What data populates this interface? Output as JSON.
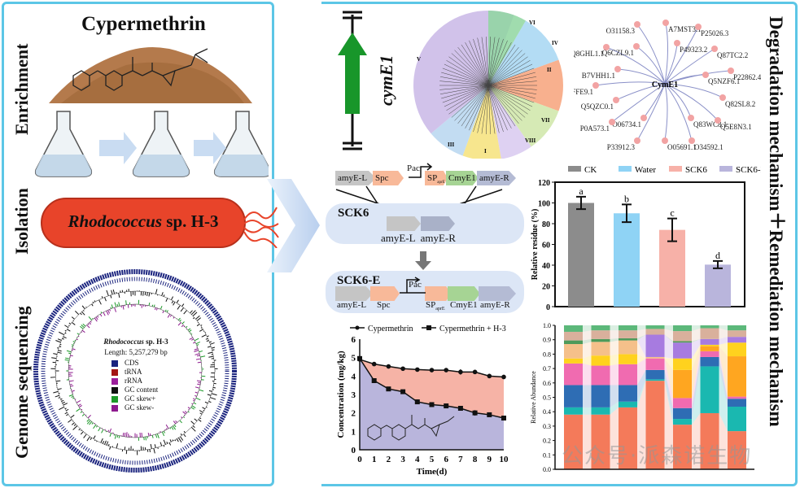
{
  "left": {
    "section_labels": [
      "Enrichment",
      "Isolation",
      "Genome sequencing"
    ],
    "compound_title": "Cypermethrin",
    "strain_name_italic": "Rhodococcus",
    "strain_name_rest": " sp. H-3",
    "genome": {
      "title_italic": "Rhodococcus",
      "title_rest": " sp. H-3",
      "length": "Length: 5,257,279 bp",
      "legend": [
        {
          "label": "CDS",
          "color": "#1a237e"
        },
        {
          "label": "tRNA",
          "color": "#a31515"
        },
        {
          "label": "rRNA",
          "color": "#9c1f9c"
        },
        {
          "label": "GC content",
          "color": "#111111"
        },
        {
          "label": "GC skew+",
          "color": "#1e9a2a"
        },
        {
          "label": "GC skew-",
          "color": "#8e1a8e"
        }
      ]
    }
  },
  "middle": {
    "gene_label": "cymE1",
    "tree_clades": [
      "I",
      "II",
      "III",
      "IV",
      "V",
      "VI",
      "VII",
      "VIII"
    ],
    "construct": {
      "donor": [
        "amyE-L",
        "Spc",
        "Pac",
        "SP",
        "aprE",
        "CmyE1",
        "amyE-R"
      ],
      "sck6_title": "SCK6",
      "sck6_genes": "amyE-L  amyE-R",
      "sck6e_title": "SCK6-E",
      "sck6e_labels": [
        "amyE-L",
        "Spc",
        "Pac",
        "SP",
        "aprE",
        "CmyE1",
        "amyE-R"
      ]
    }
  },
  "network": {
    "center": "CymE1",
    "nodes": [
      "A7MST3.1",
      "O31158.3",
      "P25026.3",
      "Q8GHL1.1",
      "Q6CZL9.1",
      "P49323.2",
      "Q87TC2.2",
      "B7VHH1.1",
      "P22862.4",
      "Q5NZF6.1",
      "B5FFE9.1",
      "Q5QZC0.1",
      "Q82SL8.2",
      "Q83WC8.1",
      "O06734.1",
      "Q5E8N3.1",
      "P0A573.1",
      "P33912.3",
      "O05691.1",
      "O34592.1"
    ]
  },
  "right_title": "Degradation mechanism＋Remediation mechanism",
  "watermark": "公众号·派森诺生物",
  "chart_data": [
    {
      "type": "bar",
      "categories": [
        "CK",
        "Water",
        "SCK6",
        "SCK6-E"
      ],
      "values": [
        100,
        90,
        74,
        40.5
      ],
      "errors": [
        6,
        8.5,
        11,
        3.5
      ],
      "letters": [
        "a",
        "b",
        "c",
        "d"
      ],
      "colors": [
        "#8c8c8c",
        "#8fd3f5",
        "#f7b1a8",
        "#b9b5dc"
      ],
      "ylabel": "Relative residue (%)",
      "ylim": [
        0,
        120
      ],
      "yticks": [
        "0",
        "20",
        "40",
        "60",
        "80",
        "100",
        "120"
      ],
      "legend": "top"
    },
    {
      "type": "line",
      "x": [
        0,
        1,
        2,
        3,
        4,
        5,
        6,
        7,
        8,
        9,
        10
      ],
      "series": [
        {
          "name": "Cypermethrin",
          "values": [
            4.9,
            4.65,
            4.52,
            4.4,
            4.35,
            4.32,
            4.32,
            4.22,
            4.22,
            4.0,
            3.95
          ],
          "errors": [
            0.1,
            0.1,
            0.1,
            0.1,
            0.1,
            0.08,
            0.08,
            0.15,
            0.05,
            0.12,
            0.05
          ]
        },
        {
          "name": "Cypermethrin + H-3",
          "values": [
            4.95,
            3.75,
            3.3,
            3.15,
            2.6,
            2.45,
            2.38,
            2.25,
            2.0,
            1.9,
            1.72
          ],
          "errors": [
            0.1,
            0.08,
            0.08,
            0.08,
            0.12,
            0.08,
            0.06,
            0.1,
            0.15,
            0.1,
            0.05
          ]
        }
      ],
      "xlabel": "Time(d)",
      "ylabel": "Concentration (mg/kg)",
      "xlim": [
        0,
        10
      ],
      "ylim": [
        0,
        6
      ],
      "xticks": [
        "0",
        "1",
        "2",
        "3",
        "4",
        "5",
        "6",
        "7",
        "8",
        "9",
        "10"
      ],
      "yticks": [
        "0",
        "1",
        "2",
        "3",
        "4",
        "5",
        "6"
      ],
      "fill_colors": [
        "#f6b3a6",
        "#b9b5dc"
      ]
    },
    {
      "type": "bar",
      "stacked": true,
      "ylabel": "Relative Abundance",
      "ylim": [
        0,
        1
      ],
      "yticks": [
        "0.0",
        "0.1",
        "0.2",
        "0.3",
        "0.4",
        "0.5",
        "0.6",
        "0.7",
        "0.8",
        "0.9",
        "1.0"
      ],
      "layer_colors": [
        "#f47a5a",
        "#1ab8b0",
        "#2e6db4",
        "#f06bb0",
        "#ffa620",
        "#ffd21e",
        "#f5c08a",
        "#a77be0",
        "#4e9a5a",
        "#d9b09c",
        "#5cb87a"
      ],
      "bars": [
        [
          0.38,
          0.05,
          0.155,
          0.15,
          0,
          0.035,
          0.1,
          0,
          0.025,
          0.06,
          0.045
        ],
        [
          0.38,
          0.05,
          0.155,
          0.135,
          0,
          0.07,
          0.095,
          0,
          0.02,
          0.06,
          0.035
        ],
        [
          0.43,
          0.04,
          0.115,
          0.145,
          0,
          0.07,
          0.095,
          0,
          0.015,
          0.055,
          0.035
        ],
        [
          0.615,
          0.01,
          0.065,
          0.08,
          0,
          0,
          0.01,
          0.155,
          0,
          0.04,
          0.025
        ],
        [
          0.31,
          0.04,
          0.075,
          0.07,
          0.195,
          0.08,
          0,
          0.11,
          0.01,
          0.07,
          0.04
        ],
        [
          0.39,
          0.325,
          0.065,
          0.04,
          0.035,
          0.01,
          0,
          0.04,
          0,
          0.075,
          0.02
        ],
        [
          0.265,
          0.17,
          0.055,
          0.015,
          0.28,
          0.095,
          0,
          0.04,
          0,
          0.045,
          0.035
        ]
      ]
    }
  ]
}
